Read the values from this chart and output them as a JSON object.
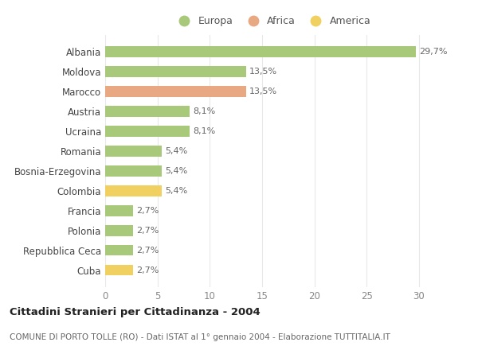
{
  "categories": [
    "Albania",
    "Moldova",
    "Marocco",
    "Austria",
    "Ucraina",
    "Romania",
    "Bosnia-Erzegovina",
    "Colombia",
    "Francia",
    "Polonia",
    "Repubblica Ceca",
    "Cuba"
  ],
  "values": [
    29.7,
    13.5,
    13.5,
    8.1,
    8.1,
    5.4,
    5.4,
    5.4,
    2.7,
    2.7,
    2.7,
    2.7
  ],
  "labels": [
    "29,7%",
    "13,5%",
    "13,5%",
    "8,1%",
    "8,1%",
    "5,4%",
    "5,4%",
    "5,4%",
    "2,7%",
    "2,7%",
    "2,7%",
    "2,7%"
  ],
  "continents": [
    "Europa",
    "Europa",
    "Africa",
    "Europa",
    "Europa",
    "Europa",
    "Europa",
    "America",
    "Europa",
    "Europa",
    "Europa",
    "America"
  ],
  "colors": {
    "Europa": "#a8c87a",
    "Africa": "#e8a882",
    "America": "#f0d060"
  },
  "legend_order": [
    "Europa",
    "Africa",
    "America"
  ],
  "legend_colors": [
    "#a8c87a",
    "#e8a882",
    "#f0d060"
  ],
  "legend_labels": [
    "Europa",
    "Africa",
    "America"
  ],
  "title_main": "Cittadini Stranieri per Cittadinanza - 2004",
  "title_sub": "COMUNE DI PORTO TOLLE (RO) - Dati ISTAT al 1° gennaio 2004 - Elaborazione TUTTITALIA.IT",
  "xlim": [
    0,
    32
  ],
  "xticks": [
    0,
    5,
    10,
    15,
    20,
    25,
    30
  ],
  "background_color": "#ffffff",
  "grid_color": "#e8e8e8",
  "bar_height": 0.55,
  "figsize": [
    6.0,
    4.4
  ],
  "dpi": 100
}
